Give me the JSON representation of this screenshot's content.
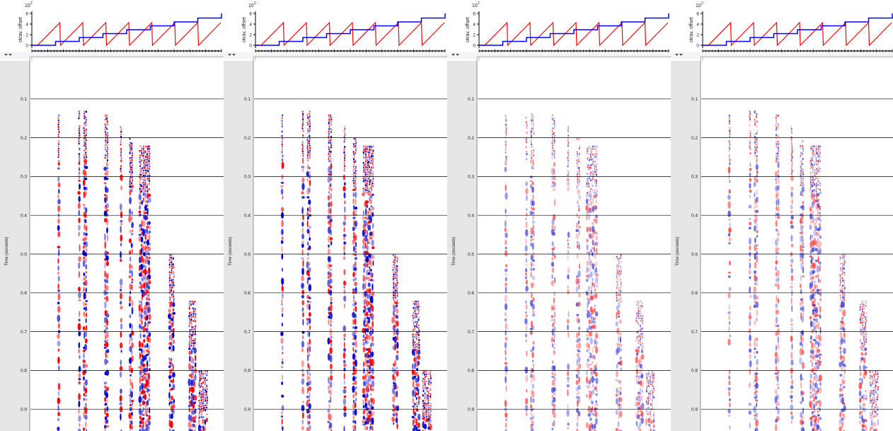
{
  "header_plot": {
    "ylabel": "otrav, offset",
    "exponent": "10",
    "exponent_power": "2",
    "yticks": [
      "6",
      "4",
      "2",
      "0"
    ],
    "series_colors": {
      "otrav": "#ff0000",
      "offset": "#0000ff"
    }
  },
  "seismic": {
    "ylabel": "Time (seconds)",
    "time_ticks": [
      "0.1",
      "0.2",
      "0.3",
      "0.4",
      "0.5",
      "0.6",
      "0.7",
      "0.8",
      "0.9"
    ],
    "time_values": [
      0.1,
      0.2,
      0.3,
      0.4,
      0.5,
      0.6,
      0.7,
      0.8,
      0.9
    ],
    "positive_color": "#ff0000",
    "negative_color": "#0000cc"
  },
  "panels": [
    {
      "id": 0,
      "amplitude": 1.0,
      "seed": 11
    },
    {
      "id": 1,
      "amplitude": 0.95,
      "seed": 23
    },
    {
      "id": 2,
      "amplitude": 0.55,
      "seed": 37
    },
    {
      "id": 3,
      "amplitude": 0.6,
      "seed": 51
    }
  ],
  "chart_data": {
    "type": "line",
    "title": "",
    "xlabel": "",
    "ylabel": "otrav, offset",
    "ylim": [
      0,
      600
    ],
    "y_scale_label": "10^2",
    "series": [
      {
        "name": "otrav",
        "pattern": "sawtooth",
        "min": 0,
        "max": 400,
        "cycles": 8
      },
      {
        "name": "offset",
        "pattern": "staircase",
        "min": 0,
        "max": 600,
        "steps": 8
      }
    ]
  }
}
